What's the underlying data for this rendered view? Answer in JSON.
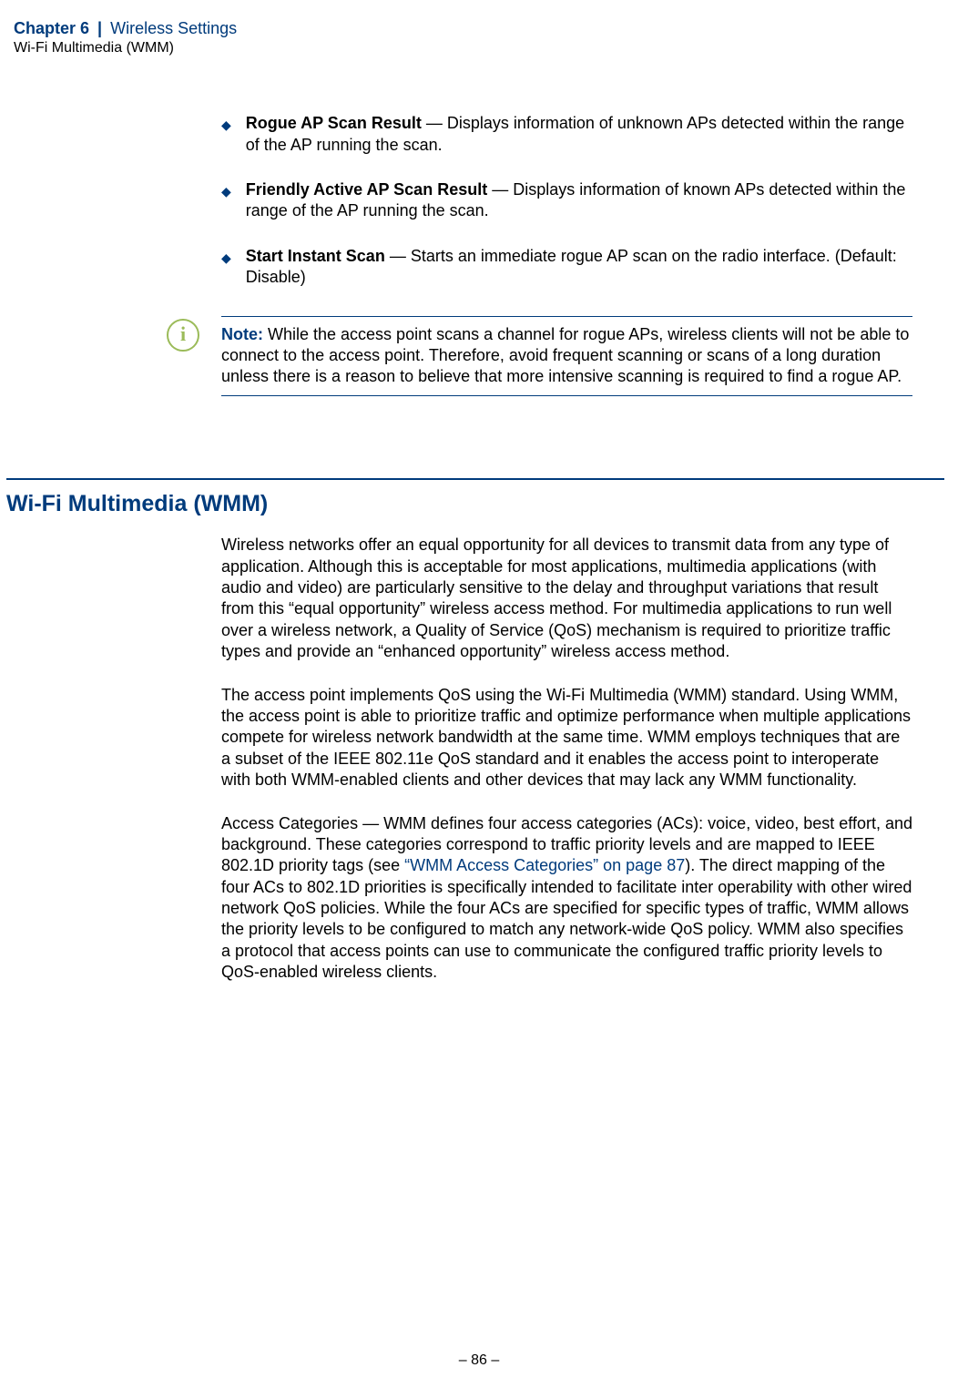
{
  "header": {
    "chapter": "Chapter 6",
    "separator": "|",
    "title": "Wireless Settings",
    "subtitle": "Wi-Fi Multimedia (WMM)"
  },
  "bullets": [
    {
      "term": "Rogue AP Scan Result",
      "desc": " — Displays information of unknown APs detected within the range of the AP running the scan."
    },
    {
      "term": "Friendly Active AP Scan Result",
      "desc": " — Displays information of known APs detected within the range of the AP running the scan."
    },
    {
      "term": "Start Instant Scan",
      "desc": " — Starts an immediate rogue AP scan on the radio interface. (Default: Disable)"
    }
  ],
  "note": {
    "label": "Note:",
    "text": " While the access point scans a channel for rogue APs, wireless clients will not be able to connect to the access point. Therefore, avoid frequent scanning or scans of a long duration unless there is a reason to believe that more intensive scanning is required to find a rogue AP."
  },
  "section": {
    "heading": "Wi-Fi Multimedia (WMM)",
    "p1": "Wireless networks offer an equal opportunity for all devices to transmit data from any type of application. Although this is acceptable for most applications, multimedia applications (with audio and video) are particularly sensitive to the delay and throughput variations that result from this “equal opportunity” wireless access method. For multimedia applications to run well over a wireless network, a Quality of Service (QoS) mechanism is required to prioritize traffic types and provide an “enhanced opportunity” wireless access method.",
    "p2": "The access point implements QoS using the Wi-Fi Multimedia (WMM) standard. Using WMM, the access point is able to prioritize traffic and optimize performance when multiple applications compete for wireless network bandwidth at the same time. WMM employs techniques that are a subset of the IEEE 802.11e QoS standard and it enables the access point to interoperate with both WMM-enabled clients and other devices that may lack any WMM functionality.",
    "p3a": "Access Categories — WMM defines four access categories (ACs): voice, video, best effort, and background. These categories correspond to traffic priority levels and are mapped to IEEE 802.1D priority tags (see ",
    "p3link": "“WMM Access Categories” on page 87",
    "p3b": "). The direct mapping of the four ACs to 802.1D priorities is specifically intended to facilitate inter operability with other wired network QoS policies. While the four ACs are specified for specific types of traffic, WMM allows the priority levels to be configured to match any network-wide QoS policy. WMM also specifies a protocol that access points can use to communicate the configured traffic priority levels to QoS-enabled wireless clients."
  },
  "footer": "–  86  –"
}
